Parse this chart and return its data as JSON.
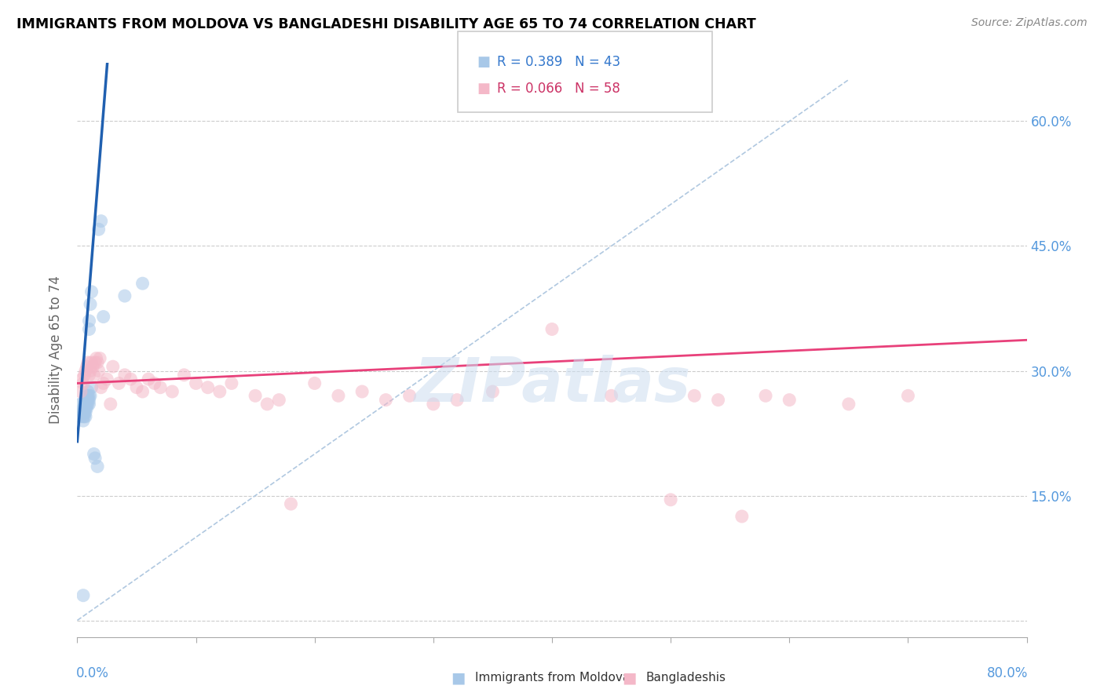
{
  "title": "IMMIGRANTS FROM MOLDOVA VS BANGLADESHI DISABILITY AGE 65 TO 74 CORRELATION CHART",
  "source": "Source: ZipAtlas.com",
  "ylabel": "Disability Age 65 to 74",
  "yticks": [
    0.0,
    0.15,
    0.3,
    0.45,
    0.6
  ],
  "ytick_labels": [
    "",
    "15.0%",
    "30.0%",
    "45.0%",
    "60.0%"
  ],
  "xlim": [
    0.0,
    0.8
  ],
  "ylim": [
    -0.02,
    0.67
  ],
  "legend_blue_label": "Immigrants from Moldova",
  "legend_pink_label": "Bangladeshis",
  "blue_color": "#a8c8e8",
  "pink_color": "#f4b8c8",
  "blue_line_color": "#2060b0",
  "pink_line_color": "#e8407a",
  "diag_line_color": "#b0c8e0",
  "watermark": "ZIPatlas",
  "blue_x": [
    0.003,
    0.003,
    0.004,
    0.005,
    0.005,
    0.005,
    0.005,
    0.006,
    0.006,
    0.006,
    0.006,
    0.006,
    0.007,
    0.007,
    0.007,
    0.007,
    0.007,
    0.008,
    0.008,
    0.008,
    0.008,
    0.009,
    0.009,
    0.009,
    0.009,
    0.01,
    0.01,
    0.01,
    0.01,
    0.01,
    0.011,
    0.011,
    0.012,
    0.012,
    0.014,
    0.015,
    0.017,
    0.018,
    0.02,
    0.022,
    0.04,
    0.055,
    0.005
  ],
  "blue_y": [
    0.245,
    0.26,
    0.25,
    0.24,
    0.245,
    0.25,
    0.255,
    0.245,
    0.25,
    0.255,
    0.26,
    0.265,
    0.245,
    0.25,
    0.255,
    0.26,
    0.265,
    0.255,
    0.26,
    0.265,
    0.27,
    0.26,
    0.265,
    0.27,
    0.275,
    0.26,
    0.265,
    0.27,
    0.35,
    0.36,
    0.27,
    0.38,
    0.28,
    0.395,
    0.2,
    0.195,
    0.185,
    0.47,
    0.48,
    0.365,
    0.39,
    0.405,
    0.03
  ],
  "pink_x": [
    0.003,
    0.004,
    0.005,
    0.006,
    0.007,
    0.008,
    0.009,
    0.01,
    0.011,
    0.012,
    0.013,
    0.014,
    0.015,
    0.016,
    0.017,
    0.018,
    0.019,
    0.02,
    0.022,
    0.025,
    0.028,
    0.03,
    0.035,
    0.04,
    0.045,
    0.05,
    0.055,
    0.06,
    0.065,
    0.07,
    0.08,
    0.09,
    0.1,
    0.11,
    0.12,
    0.13,
    0.15,
    0.16,
    0.17,
    0.18,
    0.2,
    0.22,
    0.24,
    0.26,
    0.28,
    0.3,
    0.32,
    0.35,
    0.4,
    0.45,
    0.5,
    0.52,
    0.54,
    0.56,
    0.58,
    0.6,
    0.65,
    0.7
  ],
  "pink_y": [
    0.275,
    0.29,
    0.285,
    0.295,
    0.3,
    0.305,
    0.31,
    0.295,
    0.3,
    0.31,
    0.305,
    0.295,
    0.31,
    0.315,
    0.31,
    0.3,
    0.315,
    0.28,
    0.285,
    0.29,
    0.26,
    0.305,
    0.285,
    0.295,
    0.29,
    0.28,
    0.275,
    0.29,
    0.285,
    0.28,
    0.275,
    0.295,
    0.285,
    0.28,
    0.275,
    0.285,
    0.27,
    0.26,
    0.265,
    0.14,
    0.285,
    0.27,
    0.275,
    0.265,
    0.27,
    0.26,
    0.265,
    0.275,
    0.35,
    0.27,
    0.145,
    0.27,
    0.265,
    0.125,
    0.27,
    0.265,
    0.26,
    0.27
  ],
  "blue_intercept": 0.215,
  "blue_slope": 18.0,
  "pink_intercept": 0.285,
  "pink_slope": 0.065
}
